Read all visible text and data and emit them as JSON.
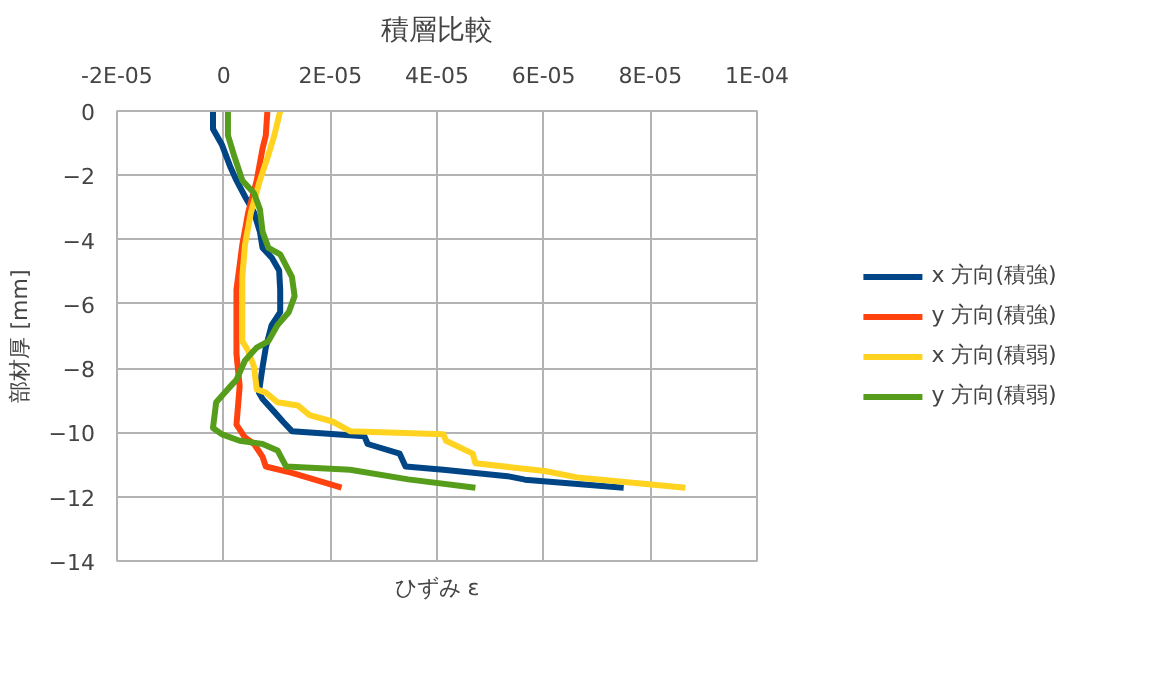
{
  "chart_data": {
    "type": "line",
    "title": "積層比較",
    "xlabel": "ひずみ ε",
    "ylabel": "部材厚 [mm]",
    "xlim": [
      -2e-05,
      0.0001
    ],
    "ylim": [
      -14,
      0
    ],
    "xticks": [
      {
        "value": -2e-05,
        "label": "-2E-05"
      },
      0,
      {
        "value": 2e-05,
        "label": "2E-05"
      },
      {
        "value": 4e-05,
        "label": "4E-05"
      },
      {
        "value": 6e-05,
        "label": "6E-05"
      },
      {
        "value": 8e-05,
        "label": "8E-05"
      },
      {
        "value": 0.0001,
        "label": "1E-04"
      }
    ],
    "yticks": [
      0,
      -2,
      -4,
      -6,
      -8,
      -10,
      -12,
      -14
    ],
    "grid": true,
    "legend": "right",
    "line_style": "solid",
    "marker": "none",
    "series": [
      {
        "name": "x 方向(積強)",
        "color": "#004586",
        "x": [
          -2e-06,
          -2e-06,
          -3e-07,
          1.3e-06,
          2.4e-06,
          4e-06,
          5.7e-06,
          6.8e-06,
          7.3e-06,
          9e-06,
          1.04e-05,
          1.06e-05,
          1.06e-05,
          9e-06,
          7.9e-06,
          7.3e-06,
          6.6e-06,
          7.3e-06,
          9.5e-06,
          1.11e-05,
          1.28e-05,
          2.64e-05,
          2.7e-05,
          3.3e-05,
          3.41e-05,
          4.12e-05,
          5.32e-05,
          5.65e-05,
          7.5e-05
        ],
        "values": [
          0,
          -0.56,
          -1.06,
          -1.76,
          -2.16,
          -2.66,
          -3.16,
          -3.76,
          -4.26,
          -4.56,
          -4.96,
          -5.56,
          -6.26,
          -6.66,
          -7.36,
          -7.96,
          -8.76,
          -8.96,
          -9.36,
          -9.66,
          -9.96,
          -10.12,
          -10.36,
          -10.66,
          -11.06,
          -11.16,
          -11.36,
          -11.47,
          -11.72
        ]
      },
      {
        "name": "y 方向(積強)",
        "color": "#ff420e",
        "x": [
          8.2e-06,
          7.9e-06,
          7.3e-06,
          6.2e-06,
          4.6e-06,
          3.5e-06,
          2.4e-06,
          2.4e-06,
          3e-06,
          2.4e-06,
          4e-06,
          5.7e-06,
          7.3e-06,
          7.9e-06,
          1.28e-05,
          2.21e-05
        ],
        "values": [
          0,
          -0.76,
          -1.16,
          -2.16,
          -3.16,
          -4.16,
          -5.56,
          -7.56,
          -8.56,
          -9.76,
          -10.16,
          -10.36,
          -10.76,
          -11.06,
          -11.26,
          -11.72
        ]
      },
      {
        "name": "x 方向(積弱)",
        "color": "#ffd320",
        "x": [
          1.06e-05,
          9.5e-06,
          8.4e-06,
          6.8e-06,
          5.1e-06,
          4e-06,
          3.5e-06,
          3.5e-06,
          4.6e-06,
          5.7e-06,
          6.2e-06,
          7.9e-06,
          1.01e-05,
          1.39e-05,
          1.61e-05,
          2.04e-05,
          2.37e-05,
          4.12e-05,
          4.17e-05,
          4.67e-05,
          4.72e-05,
          6.02e-05,
          6.63e-05,
          8.66e-05
        ],
        "values": [
          0,
          -0.76,
          -1.36,
          -2.16,
          -3.16,
          -4.16,
          -5.16,
          -7.16,
          -7.46,
          -7.96,
          -8.66,
          -8.76,
          -9.06,
          -9.16,
          -9.46,
          -9.66,
          -9.96,
          -10.06,
          -10.26,
          -10.66,
          -10.96,
          -11.2,
          -11.4,
          -11.72
        ]
      },
      {
        "name": "y 方向(積弱)",
        "color": "#579d1c",
        "x": [
          8e-07,
          8e-07,
          1.9e-06,
          3.5e-06,
          5.7e-06,
          6.8e-06,
          7.3e-06,
          8.4e-06,
          1.06e-05,
          1.28e-05,
          1.33e-05,
          1.22e-05,
          1.01e-05,
          8.4e-06,
          6.2e-06,
          4e-06,
          2.4e-06,
          1.3e-06,
          -1.4e-06,
          -2e-06,
          -3e-07,
          3e-06,
          7.3e-06,
          1.01e-05,
          1.17e-05,
          2.37e-05,
          3.46e-05,
          4.72e-05
        ],
        "values": [
          0,
          -0.76,
          -1.36,
          -2.16,
          -2.56,
          -3.06,
          -3.76,
          -4.26,
          -4.46,
          -5.16,
          -5.76,
          -6.26,
          -6.66,
          -7.16,
          -7.36,
          -7.76,
          -8.36,
          -8.56,
          -9.06,
          -9.86,
          -10.06,
          -10.26,
          -10.36,
          -10.56,
          -11.06,
          -11.16,
          -11.46,
          -11.72
        ]
      }
    ]
  }
}
